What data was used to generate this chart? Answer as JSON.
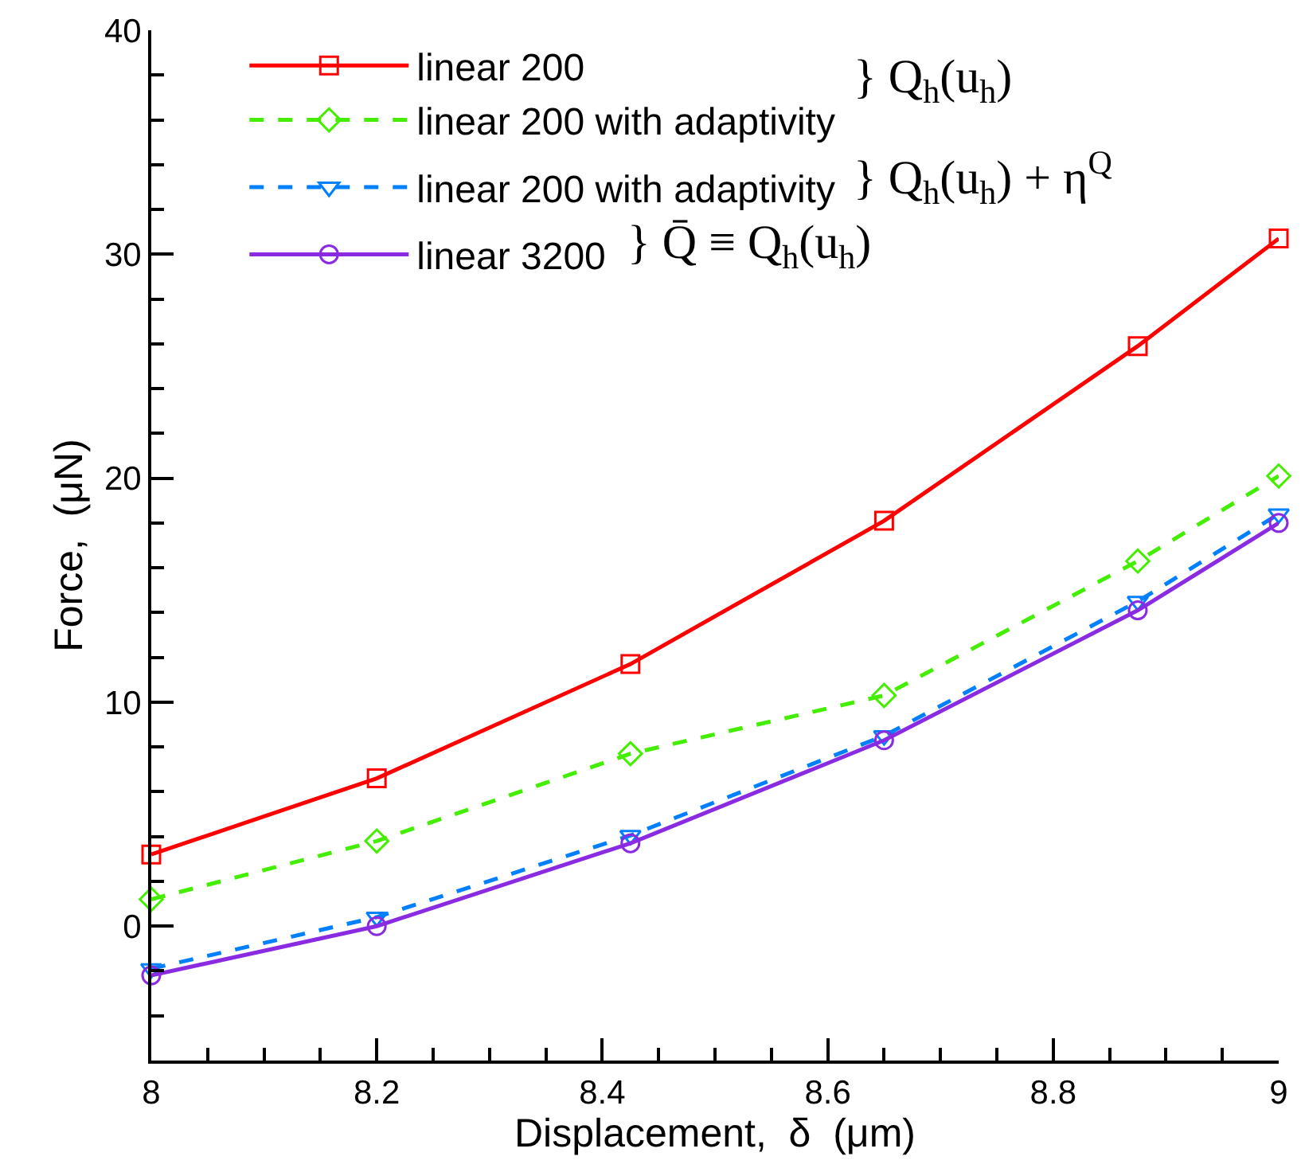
{
  "chart_data": {
    "type": "line",
    "xlabel": "Displacement,  δ  (μm)",
    "ylabel": "Force,  (μN)",
    "x": [
      8,
      8.2,
      8.425,
      8.65,
      8.875,
      9
    ],
    "series": [
      {
        "name": "linear 200",
        "color": "#ff0000",
        "marker": "square",
        "line_style": "solid",
        "values": [
          3.2,
          6.6,
          11.7,
          18.1,
          25.9,
          30.7
        ]
      },
      {
        "name": "linear 200 with adaptivity",
        "color": "#44ee00",
        "marker": "diamond",
        "line_style": "dashed",
        "values": [
          1.2,
          3.8,
          7.7,
          10.3,
          16.3,
          20.1
        ]
      },
      {
        "name": "linear 200 with adaptivity",
        "color": "#0080ff",
        "marker": "triangle",
        "line_style": "dashed",
        "values": [
          -1.9,
          0.4,
          4.05,
          8.5,
          14.5,
          18.4
        ]
      },
      {
        "name": "linear 3200",
        "color": "#8a2be2",
        "marker": "circle",
        "line_style": "solid",
        "values": [
          -2.2,
          0,
          3.7,
          8.3,
          14.1,
          18.0
        ]
      }
    ],
    "annotations": [
      "} Q$_{h}$(u$_{h}$)",
      "} Q$_{h}$(u$_{h}$) + η$^{Q}$",
      "} Q̄ ≡ Q$_{h}$(u$_{h}$)"
    ],
    "xlim": [
      8,
      9
    ],
    "xticks": [
      8,
      8.2,
      8.4,
      8.6,
      8.8,
      9
    ],
    "ylim": [
      -6,
      40
    ],
    "yticks": [
      0,
      10,
      20,
      30,
      40
    ],
    "legend": "top left"
  }
}
